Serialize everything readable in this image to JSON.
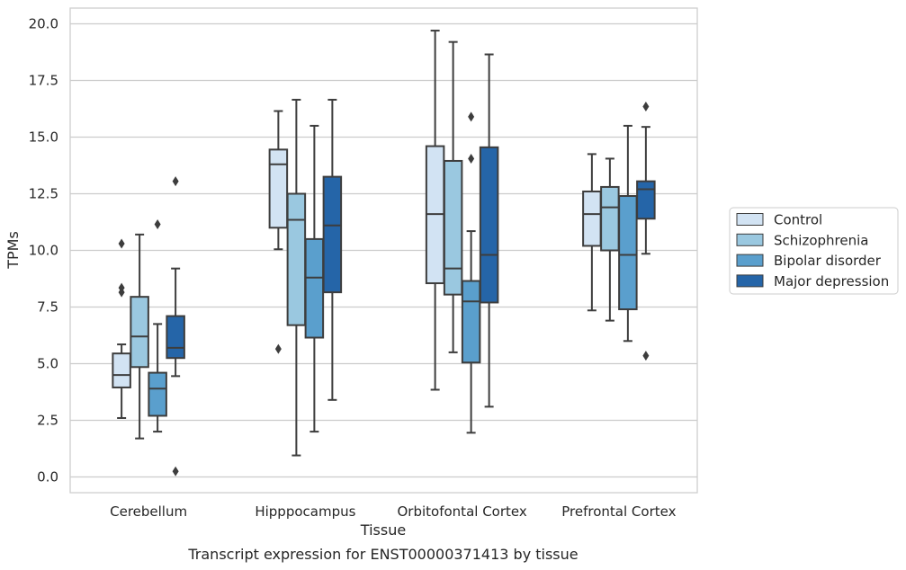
{
  "chart_data": {
    "type": "box",
    "title": "",
    "caption": "Transcript expression for ENST00000371413 by tissue",
    "xlabel": "Tissue",
    "ylabel": "TPMs",
    "ylim": [
      -0.65,
      20.65
    ],
    "yticks": [
      "0.0",
      "2.5",
      "5.0",
      "7.5",
      "10.0",
      "12.5",
      "15.0",
      "17.5",
      "20.0"
    ],
    "grid": true,
    "legend_position": "right",
    "categories": [
      "Cerebellum",
      "Hipppocampus",
      "Orbitofontal Cortex",
      "Prefrontal Cortex"
    ],
    "series": [
      {
        "name": "Control",
        "color": "#d2e3f3",
        "boxes": [
          {
            "q1": 3.95,
            "median": 4.5,
            "q3": 5.45,
            "whisker_low": 2.6,
            "whisker_high": 5.85,
            "outliers": [
              8.15,
              8.35,
              10.3
            ]
          },
          {
            "q1": 11.0,
            "median": 13.8,
            "q3": 14.45,
            "whisker_low": 10.05,
            "whisker_high": 16.15,
            "outliers": [
              5.65
            ]
          },
          {
            "q1": 8.55,
            "median": 11.6,
            "q3": 14.6,
            "whisker_low": 3.85,
            "whisker_high": 19.7,
            "outliers": []
          },
          {
            "q1": 10.2,
            "median": 11.6,
            "q3": 12.6,
            "whisker_low": 7.35,
            "whisker_high": 14.25,
            "outliers": []
          }
        ]
      },
      {
        "name": "Schizophrenia",
        "color": "#9ac8e0",
        "boxes": [
          {
            "q1": 4.85,
            "median": 6.2,
            "q3": 7.95,
            "whisker_low": 1.7,
            "whisker_high": 10.7,
            "outliers": []
          },
          {
            "q1": 6.7,
            "median": 11.35,
            "q3": 12.5,
            "whisker_low": 0.95,
            "whisker_high": 16.65,
            "outliers": []
          },
          {
            "q1": 8.05,
            "median": 9.2,
            "q3": 13.95,
            "whisker_low": 5.5,
            "whisker_high": 19.2,
            "outliers": []
          },
          {
            "q1": 10.0,
            "median": 11.9,
            "q3": 12.8,
            "whisker_low": 6.9,
            "whisker_high": 14.05,
            "outliers": []
          }
        ]
      },
      {
        "name": "Bipolar disorder",
        "color": "#5a9fcd",
        "boxes": [
          {
            "q1": 2.7,
            "median": 3.9,
            "q3": 4.6,
            "whisker_low": 2.0,
            "whisker_high": 6.75,
            "outliers": [
              11.15
            ]
          },
          {
            "q1": 6.15,
            "median": 8.8,
            "q3": 10.5,
            "whisker_low": 2.0,
            "whisker_high": 15.5,
            "outliers": []
          },
          {
            "q1": 5.05,
            "median": 7.75,
            "q3": 8.65,
            "whisker_low": 1.95,
            "whisker_high": 10.85,
            "outliers": [
              14.05,
              15.9
            ]
          },
          {
            "q1": 7.4,
            "median": 9.8,
            "q3": 12.4,
            "whisker_low": 6.0,
            "whisker_high": 15.5,
            "outliers": []
          }
        ]
      },
      {
        "name": "Major depression",
        "color": "#2565a8",
        "boxes": [
          {
            "q1": 5.25,
            "median": 5.7,
            "q3": 7.1,
            "whisker_low": 4.45,
            "whisker_high": 9.2,
            "outliers": [
              0.25,
              13.05
            ]
          },
          {
            "q1": 8.15,
            "median": 11.1,
            "q3": 13.25,
            "whisker_low": 3.4,
            "whisker_high": 16.65,
            "outliers": []
          },
          {
            "q1": 7.7,
            "median": 9.8,
            "q3": 14.55,
            "whisker_low": 3.1,
            "whisker_high": 18.65,
            "outliers": []
          },
          {
            "q1": 11.4,
            "median": 12.7,
            "q3": 13.05,
            "whisker_low": 9.85,
            "whisker_high": 15.45,
            "outliers": [
              5.35,
              16.35
            ]
          }
        ]
      }
    ]
  }
}
